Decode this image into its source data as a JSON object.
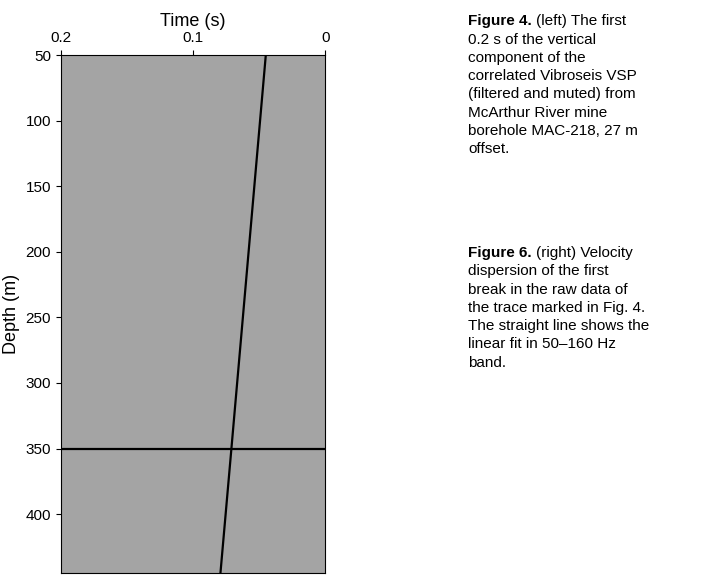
{
  "chart_data": {
    "type": "line",
    "x_label": "Time (s)",
    "y_label": "Depth (m)",
    "xlim": [
      0.2,
      0
    ],
    "xticks": [
      0.2,
      0.1,
      0
    ],
    "ylim": [
      445,
      50
    ],
    "yticks": [
      50,
      100,
      150,
      200,
      250,
      300,
      350,
      400
    ],
    "grid": false,
    "series": [
      {
        "color": "#000000",
        "x": [
          0.045,
          0.058,
          0.071,
          0.0793
        ],
        "values": [
          50,
          200,
          350,
          445
        ]
      },
      {
        "color": "#000000",
        "x": [
          0.2,
          0
        ],
        "values": [
          350,
          350
        ]
      }
    ],
    "annotations": [
      {
        "label": "Figure 4.",
        "text": "(left) The first\n0.2 s of the vertical\ncomponent of the\ncorrelated Vibroseis VSP\n(filtered and muted) from\nMcArthur River mine\nborehole MAC-218, 27 m\noffset."
      },
      {
        "label": "Figure 6.",
        "text": "(right) Velocity\ndispersion of the first\nbreak in the raw data of\nthe trace marked in Fig. 4.\nThe straight line shows the\nlinear fit in 50–160 Hz\nband."
      }
    ]
  }
}
